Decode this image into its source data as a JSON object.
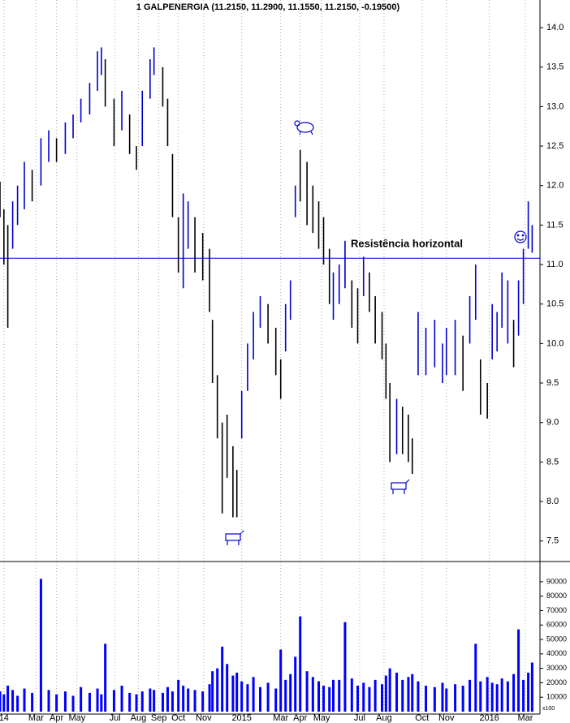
{
  "chart_data": {
    "type": "ohlc",
    "title": "1 GALPENERGIA (11.2150, 11.2900, 11.1550, 11.2150, -0.19500)",
    "x": [
      0,
      4,
      8,
      13,
      18,
      25,
      33,
      42,
      50,
      58,
      67,
      75,
      83,
      92,
      100,
      104,
      108,
      117,
      125,
      133,
      140,
      146,
      154,
      158,
      167,
      172,
      177,
      183,
      188,
      193,
      200,
      208,
      215,
      218,
      223,
      228,
      233,
      239,
      243,
      248,
      254,
      260,
      267,
      275,
      283,
      288,
      293,
      298,
      303,
      308,
      315,
      321,
      327,
      332,
      338,
      342,
      348,
      354,
      361,
      367,
      373,
      379,
      385,
      392,
      396,
      400,
      407,
      413,
      419,
      423,
      429,
      437,
      446,
      454,
      458,
      467,
      475,
      482,
      488,
      493,
      500,
      505,
      510,
      515,
      521,
      527,
      532,
      537,
      542,
      546
    ],
    "high": [
      12.05,
      11.7,
      11.5,
      11.8,
      12.0,
      12.3,
      12.2,
      12.6,
      12.7,
      12.6,
      12.8,
      12.9,
      13.1,
      13.3,
      13.7,
      13.75,
      13.6,
      13.1,
      13.2,
      12.9,
      12.5,
      13.2,
      13.6,
      13.75,
      13.5,
      13.1,
      12.4,
      11.6,
      11.9,
      11.8,
      11.6,
      11.4,
      11.2,
      10.3,
      9.6,
      9.0,
      9.1,
      8.7,
      8.4,
      9.4,
      10.0,
      10.4,
      10.6,
      10.5,
      10.2,
      9.8,
      10.5,
      10.8,
      12.0,
      12.45,
      12.3,
      12.0,
      11.8,
      11.6,
      11.2,
      10.9,
      11.0,
      11.3,
      10.8,
      10.7,
      11.1,
      10.9,
      10.6,
      10.4,
      10.0,
      9.5,
      9.3,
      9.2,
      9.1,
      8.8,
      10.4,
      10.2,
      10.3,
      10.0,
      10.2,
      10.3,
      10.1,
      10.6,
      11.0,
      9.8,
      9.5,
      10.5,
      10.4,
      10.9,
      10.8,
      10.3,
      10.8,
      11.2,
      11.8,
      11.5
    ],
    "low": [
      11.6,
      11.0,
      10.2,
      11.2,
      11.5,
      11.7,
      11.8,
      12.0,
      12.3,
      12.3,
      12.4,
      12.6,
      12.8,
      12.9,
      13.2,
      13.4,
      13.0,
      12.5,
      12.7,
      12.4,
      12.2,
      12.5,
      13.1,
      13.4,
      13.0,
      12.5,
      11.6,
      10.9,
      10.7,
      11.2,
      10.9,
      10.8,
      10.4,
      9.5,
      8.8,
      7.85,
      8.3,
      7.8,
      7.8,
      8.8,
      9.4,
      9.8,
      10.2,
      10.0,
      9.6,
      9.3,
      9.9,
      10.3,
      11.6,
      11.8,
      11.5,
      11.4,
      11.2,
      11.0,
      10.5,
      10.3,
      10.5,
      10.7,
      10.2,
      10.0,
      10.6,
      10.4,
      10.0,
      9.8,
      9.3,
      8.5,
      8.6,
      8.6,
      8.5,
      8.35,
      9.6,
      9.6,
      9.7,
      9.5,
      9.6,
      9.6,
      9.4,
      10.0,
      10.3,
      9.1,
      9.05,
      9.8,
      9.9,
      10.2,
      10.0,
      9.7,
      10.1,
      10.5,
      11.2,
      11.15
    ],
    "bar_colors": [
      "#000000",
      "#000000",
      "#000000",
      "#0000cc",
      "#0000cc",
      "#0000cc",
      "#000000",
      "#0000cc",
      "#0000cc",
      "#000000",
      "#0000cc",
      "#0000cc",
      "#0000cc",
      "#0000cc",
      "#0000cc",
      "#0000cc",
      "#000000",
      "#000000",
      "#0000cc",
      "#000000",
      "#000000",
      "#0000cc",
      "#0000cc",
      "#0000cc",
      "#000000",
      "#000000",
      "#000000",
      "#000000",
      "#0000cc",
      "#0000cc",
      "#000000",
      "#000000",
      "#000000",
      "#000000",
      "#000000",
      "#000000",
      "#000000",
      "#000000",
      "#000000",
      "#0000cc",
      "#0000cc",
      "#0000cc",
      "#0000cc",
      "#000000",
      "#000000",
      "#000000",
      "#0000cc",
      "#0000cc",
      "#0000cc",
      "#000000",
      "#000000",
      "#000000",
      "#000000",
      "#000000",
      "#000000",
      "#0000cc",
      "#0000cc",
      "#0000cc",
      "#000000",
      "#000000",
      "#0000cc",
      "#000000",
      "#000000",
      "#000000",
      "#000000",
      "#000000",
      "#0000cc",
      "#000000",
      "#000000",
      "#000000",
      "#0000cc",
      "#0000cc",
      "#0000cc",
      "#0000cc",
      "#0000cc",
      "#0000cc",
      "#000000",
      "#0000cc",
      "#0000cc",
      "#000000",
      "#000000",
      "#0000cc",
      "#0000cc",
      "#0000cc",
      "#0000cc",
      "#000000",
      "#0000cc",
      "#0000cc",
      "#0000cc",
      "#0000cc"
    ],
    "volume": [
      14000,
      12000,
      18000,
      15000,
      11000,
      16000,
      13000,
      92000,
      15000,
      12000,
      14000,
      11000,
      17000,
      13000,
      16000,
      12000,
      47000,
      15000,
      18000,
      13000,
      12000,
      14000,
      16000,
      15000,
      13000,
      17000,
      14000,
      22000,
      18000,
      16000,
      15000,
      14000,
      19000,
      28000,
      30000,
      45000,
      33000,
      25000,
      27000,
      21000,
      19000,
      24000,
      17000,
      20000,
      16000,
      43000,
      22000,
      26000,
      38000,
      66000,
      28000,
      24000,
      21000,
      18000,
      17000,
      22000,
      22000,
      62000,
      23000,
      18000,
      20000,
      17000,
      22000,
      19000,
      25000,
      30000,
      27000,
      22000,
      24000,
      26000,
      21000,
      18000,
      17000,
      20000,
      16000,
      19000,
      18000,
      22000,
      47000,
      21000,
      24000,
      20000,
      19000,
      23000,
      21000,
      26000,
      57000,
      22000,
      27000,
      34000
    ],
    "volume_color": "#0000ff",
    "xlim": [
      0,
      554
    ],
    "xticks": [
      {
        "value": 4,
        "label": "14"
      },
      {
        "value": 37,
        "label": "Mar"
      },
      {
        "value": 58,
        "label": "Apr"
      },
      {
        "value": 79,
        "label": "May"
      },
      {
        "value": 118,
        "label": "Jul"
      },
      {
        "value": 142,
        "label": "Aug"
      },
      {
        "value": 163,
        "label": "Sep"
      },
      {
        "value": 183,
        "label": "Oct"
      },
      {
        "value": 209,
        "label": "Nov"
      },
      {
        "value": 248,
        "label": "2015"
      },
      {
        "value": 288,
        "label": "Mar"
      },
      {
        "value": 308,
        "label": "Apr"
      },
      {
        "value": 330,
        "label": "May"
      },
      {
        "value": 369,
        "label": "Jul"
      },
      {
        "value": 394,
        "label": "Aug"
      },
      {
        "value": 433,
        "label": "Oct"
      },
      {
        "value": 458,
        "label": "Nov"
      },
      {
        "value": 502,
        "label": "2016"
      },
      {
        "value": 539,
        "label": "Mar"
      }
    ],
    "ylim": [
      7.24,
      14.35
    ],
    "yticks": [
      {
        "value": 7.5,
        "label": "7.5"
      },
      {
        "value": 8,
        "label": "8.0"
      },
      {
        "value": 8.5,
        "label": "8.5"
      },
      {
        "value": 9,
        "label": "9.0"
      },
      {
        "value": 9.5,
        "label": "9.5"
      },
      {
        "value": 10,
        "label": "10.0"
      },
      {
        "value": 10.5,
        "label": "10.5"
      },
      {
        "value": 11,
        "label": "11.0"
      },
      {
        "value": 11.5,
        "label": "11.5"
      },
      {
        "value": 12,
        "label": "12.0"
      },
      {
        "value": 12.5,
        "label": "12.5"
      },
      {
        "value": 13,
        "label": "13.0"
      },
      {
        "value": 13.5,
        "label": "13.5"
      },
      {
        "value": 14,
        "label": "14.0"
      }
    ],
    "volume_ylim": [
      0,
      104000
    ],
    "volume_yticks": [
      10000,
      20000,
      30000,
      40000,
      50000,
      60000,
      70000,
      80000,
      90000
    ],
    "volume_unit_label": "x100",
    "resistance": {
      "value": 11.08,
      "label": "Resistência horizontal",
      "color": "#0000cc"
    },
    "grid": true
  }
}
